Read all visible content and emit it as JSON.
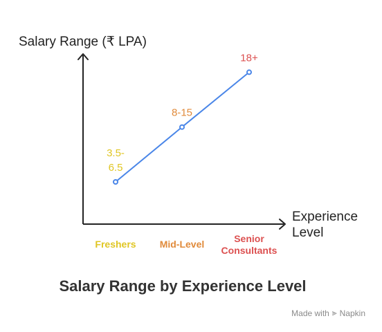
{
  "chart_data": {
    "type": "line",
    "title": "Salary Range by Experience Level",
    "ylabel": "Salary Range (₹ LPA)",
    "xlabel_lines": [
      "Experience",
      "Level"
    ],
    "categories": [
      {
        "lines": [
          "Freshers"
        ],
        "color": "#e0c623"
      },
      {
        "lines": [
          "Mid-Level"
        ],
        "color": "#e08a3a"
      },
      {
        "lines": [
          "Senior",
          "Consultants"
        ],
        "color": "#dc5050"
      }
    ],
    "points": [
      {
        "label_lines": [
          "3.5-",
          "6.5"
        ],
        "value": 5,
        "color": "#e0c623"
      },
      {
        "label_lines": [
          "8-15"
        ],
        "value": 11.5,
        "color": "#e08a3a"
      },
      {
        "label_lines": [
          "18+"
        ],
        "value": 18,
        "color": "#dc5050"
      }
    ],
    "ylim": [
      0,
      20
    ],
    "line_color": "#4a86e8",
    "axis_color": "#222222",
    "grid": false,
    "legend": "none"
  },
  "watermark": {
    "prefix": "Made with",
    "brand": "Napkin"
  }
}
